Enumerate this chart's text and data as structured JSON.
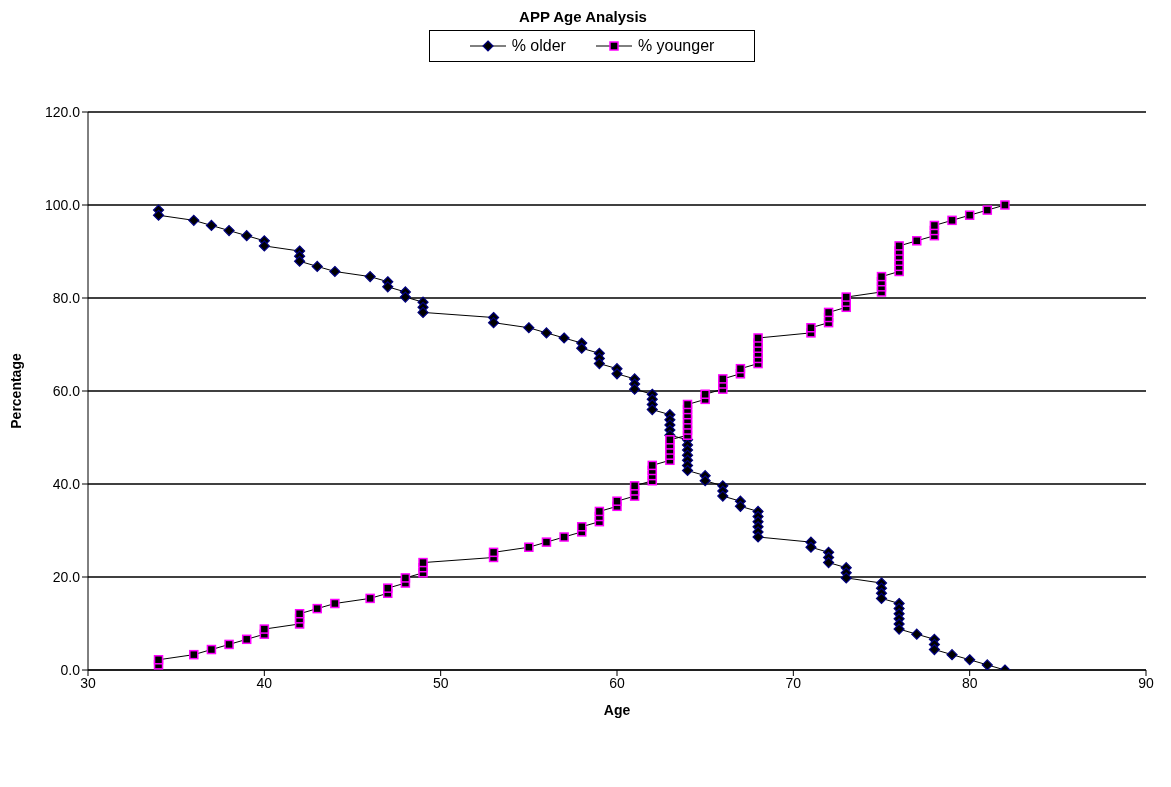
{
  "chart_data": {
    "type": "line",
    "title": "APP Age Analysis",
    "xlabel": "Age",
    "ylabel": "Percentage",
    "x": [
      34,
      34,
      36,
      37,
      38,
      39,
      40,
      40,
      42,
      42,
      42,
      43,
      44,
      46,
      47,
      47,
      48,
      48,
      49,
      49,
      49,
      53,
      53,
      55,
      56,
      57,
      58,
      58,
      59,
      59,
      59,
      60,
      60,
      61,
      61,
      61,
      62,
      62,
      62,
      62,
      63,
      63,
      63,
      63,
      63,
      64,
      64,
      64,
      64,
      64,
      64,
      64,
      65,
      65,
      66,
      66,
      66,
      67,
      67,
      68,
      68,
      68,
      68,
      68,
      68,
      71,
      71,
      72,
      72,
      72,
      73,
      73,
      73,
      75,
      75,
      75,
      75,
      76,
      76,
      76,
      76,
      76,
      76,
      77,
      78,
      78,
      78,
      79,
      80,
      81,
      82
    ],
    "series": [
      {
        "name": "% older",
        "color": "#000080",
        "marker": "diamond",
        "values": [
          98.9,
          97.8,
          96.7,
          95.6,
          94.5,
          93.4,
          92.3,
          91.2,
          90.1,
          89.0,
          87.9,
          86.8,
          85.7,
          84.6,
          83.5,
          82.4,
          81.3,
          80.2,
          79.1,
          78.0,
          76.9,
          75.8,
          74.7,
          73.6,
          72.5,
          71.4,
          70.3,
          69.2,
          68.1,
          67.0,
          65.9,
          64.8,
          63.7,
          62.6,
          61.5,
          60.4,
          59.3,
          58.2,
          57.1,
          56.0,
          54.9,
          53.8,
          52.7,
          51.6,
          50.5,
          49.5,
          48.4,
          47.3,
          46.2,
          45.1,
          44.0,
          42.9,
          41.8,
          40.7,
          39.6,
          38.5,
          37.4,
          36.3,
          35.2,
          34.1,
          33.0,
          31.9,
          30.8,
          29.7,
          28.6,
          27.5,
          26.4,
          25.3,
          24.2,
          23.1,
          22.0,
          20.9,
          19.8,
          18.7,
          17.6,
          16.5,
          15.4,
          14.3,
          13.2,
          12.1,
          11.0,
          9.9,
          8.8,
          7.7,
          6.6,
          5.5,
          4.4,
          3.3,
          2.2,
          1.1,
          0.0
        ]
      },
      {
        "name": "% younger",
        "color": "#ff00ff",
        "marker": "square",
        "values": [
          1.1,
          2.2,
          3.3,
          4.4,
          5.5,
          6.6,
          7.7,
          8.8,
          9.9,
          11.0,
          12.1,
          13.2,
          14.3,
          15.4,
          16.5,
          17.6,
          18.7,
          19.8,
          20.9,
          22.0,
          23.1,
          24.2,
          25.3,
          26.4,
          27.5,
          28.6,
          29.7,
          30.8,
          31.9,
          33.0,
          34.1,
          35.2,
          36.3,
          37.4,
          38.5,
          39.6,
          40.7,
          41.8,
          42.9,
          44.0,
          45.1,
          46.2,
          47.3,
          48.4,
          49.5,
          50.5,
          51.6,
          52.7,
          53.8,
          54.9,
          56.0,
          57.1,
          58.2,
          59.3,
          60.4,
          61.5,
          62.6,
          63.7,
          64.8,
          65.9,
          67.0,
          68.1,
          69.2,
          70.3,
          71.4,
          72.5,
          73.6,
          74.7,
          75.8,
          76.9,
          78.0,
          79.1,
          80.2,
          81.3,
          82.4,
          83.5,
          84.6,
          85.7,
          86.8,
          87.9,
          89.0,
          90.1,
          91.2,
          92.3,
          93.4,
          94.5,
          95.6,
          96.7,
          97.8,
          98.9,
          100.0
        ]
      }
    ],
    "xlim": [
      30,
      90
    ],
    "xticks": [
      30,
      40,
      50,
      60,
      70,
      80,
      90
    ],
    "ylim": [
      0,
      120
    ],
    "yticks": [
      {
        "value": 0,
        "label": "0.0"
      },
      {
        "value": 20,
        "label": "20.0"
      },
      {
        "value": 40,
        "label": "40.0"
      },
      {
        "value": 60,
        "label": "60.0"
      },
      {
        "value": 80,
        "label": "80.0"
      },
      {
        "value": 100,
        "label": "100.0"
      },
      {
        "value": 120,
        "label": "120.0"
      }
    ],
    "grid": "y",
    "legend": "top",
    "line_style": "solid"
  }
}
